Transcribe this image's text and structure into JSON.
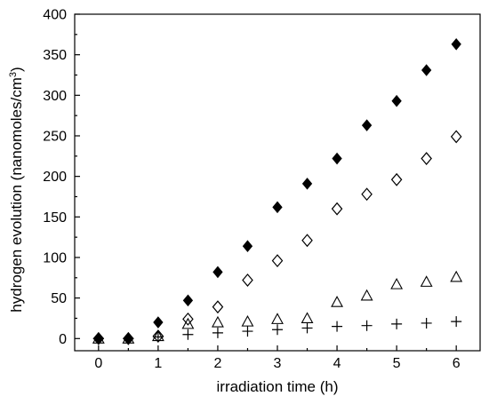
{
  "chart_data": {
    "type": "scatter",
    "title": "",
    "xlabel": "irradiation time (h)",
    "ylabel_main": "hydrogen evolution (nanomoles/cm",
    "ylabel_sup": "3",
    "ylabel_end": ")",
    "xlim": [
      -0.4,
      6.4
    ],
    "ylim": [
      -15,
      400
    ],
    "xticks": [
      0,
      1,
      2,
      3,
      4,
      5,
      6
    ],
    "yticks": [
      0,
      50,
      100,
      150,
      200,
      250,
      300,
      350,
      400
    ],
    "grid": false,
    "legend": "none",
    "series": [
      {
        "marker": "filled-diamond",
        "color": "#000000",
        "x": [
          0,
          0.5,
          1,
          1.5,
          2,
          2.5,
          3,
          3.5,
          4,
          4.5,
          5,
          5.5,
          6
        ],
        "y": [
          0,
          0,
          20,
          47,
          82,
          114,
          162,
          191,
          222,
          263,
          293,
          331,
          363
        ]
      },
      {
        "marker": "open-diamond",
        "color": "#000000",
        "x": [
          0,
          0.5,
          1,
          1.5,
          2,
          2.5,
          3,
          3.5,
          4,
          4.5,
          5,
          5.5,
          6
        ],
        "y": [
          0,
          0,
          3,
          24,
          39,
          72,
          96,
          121,
          160,
          178,
          196,
          222,
          249
        ]
      },
      {
        "marker": "open-triangle",
        "color": "#000000",
        "x": [
          0,
          0.5,
          1,
          1.5,
          2,
          2.5,
          3,
          3.5,
          4,
          4.5,
          5,
          5.5,
          6
        ],
        "y": [
          0,
          0,
          3,
          18,
          20,
          21,
          24,
          25,
          45,
          53,
          67,
          70,
          76
        ]
      },
      {
        "marker": "plus",
        "color": "#000000",
        "x": [
          0,
          0.5,
          1,
          1.5,
          2,
          2.5,
          3,
          3.5,
          4,
          4.5,
          5,
          5.5,
          6
        ],
        "y": [
          0,
          0,
          2,
          5,
          7,
          9,
          11,
          13,
          15,
          16,
          18,
          19,
          21
        ]
      }
    ]
  }
}
